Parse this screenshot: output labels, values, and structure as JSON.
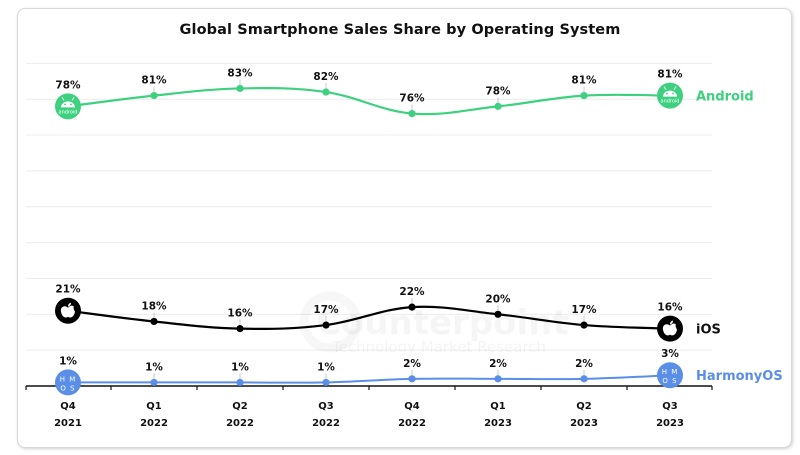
{
  "chart_data": {
    "type": "line",
    "title": "Global Smartphone Sales Share by Operating System",
    "xlabel": "",
    "ylabel": "",
    "ylim": [
      0,
      100
    ],
    "grid": true,
    "categories": [
      {
        "quarter": "Q4",
        "year": "2021"
      },
      {
        "quarter": "Q1",
        "year": "2022"
      },
      {
        "quarter": "Q2",
        "year": "2022"
      },
      {
        "quarter": "Q3",
        "year": "2022"
      },
      {
        "quarter": "Q4",
        "year": "2022"
      },
      {
        "quarter": "Q1",
        "year": "2023"
      },
      {
        "quarter": "Q2",
        "year": "2023"
      },
      {
        "quarter": "Q3",
        "year": "2023"
      }
    ],
    "series": [
      {
        "name": "Android",
        "color": "#3dd17f",
        "icon": "android-icon",
        "values": [
          78,
          81,
          83,
          82,
          76,
          78,
          81,
          81
        ]
      },
      {
        "name": "iOS",
        "color": "#000000",
        "icon": "apple-icon",
        "values": [
          21,
          18,
          16,
          17,
          22,
          20,
          17,
          16
        ]
      },
      {
        "name": "HarmonyOS",
        "color": "#5b8ee6",
        "icon": "harmonyos-icon",
        "values": [
          1,
          1,
          1,
          1,
          2,
          2,
          2,
          3
        ]
      }
    ],
    "value_suffix": "%",
    "legend_placement": "right, inline at line ends",
    "watermark": {
      "brand": "Counterpoint",
      "tagline": "Technology Market Research"
    }
  },
  "icons": {
    "android_text": "android",
    "harmony_top": "H M",
    "harmony_bottom": "O S"
  }
}
